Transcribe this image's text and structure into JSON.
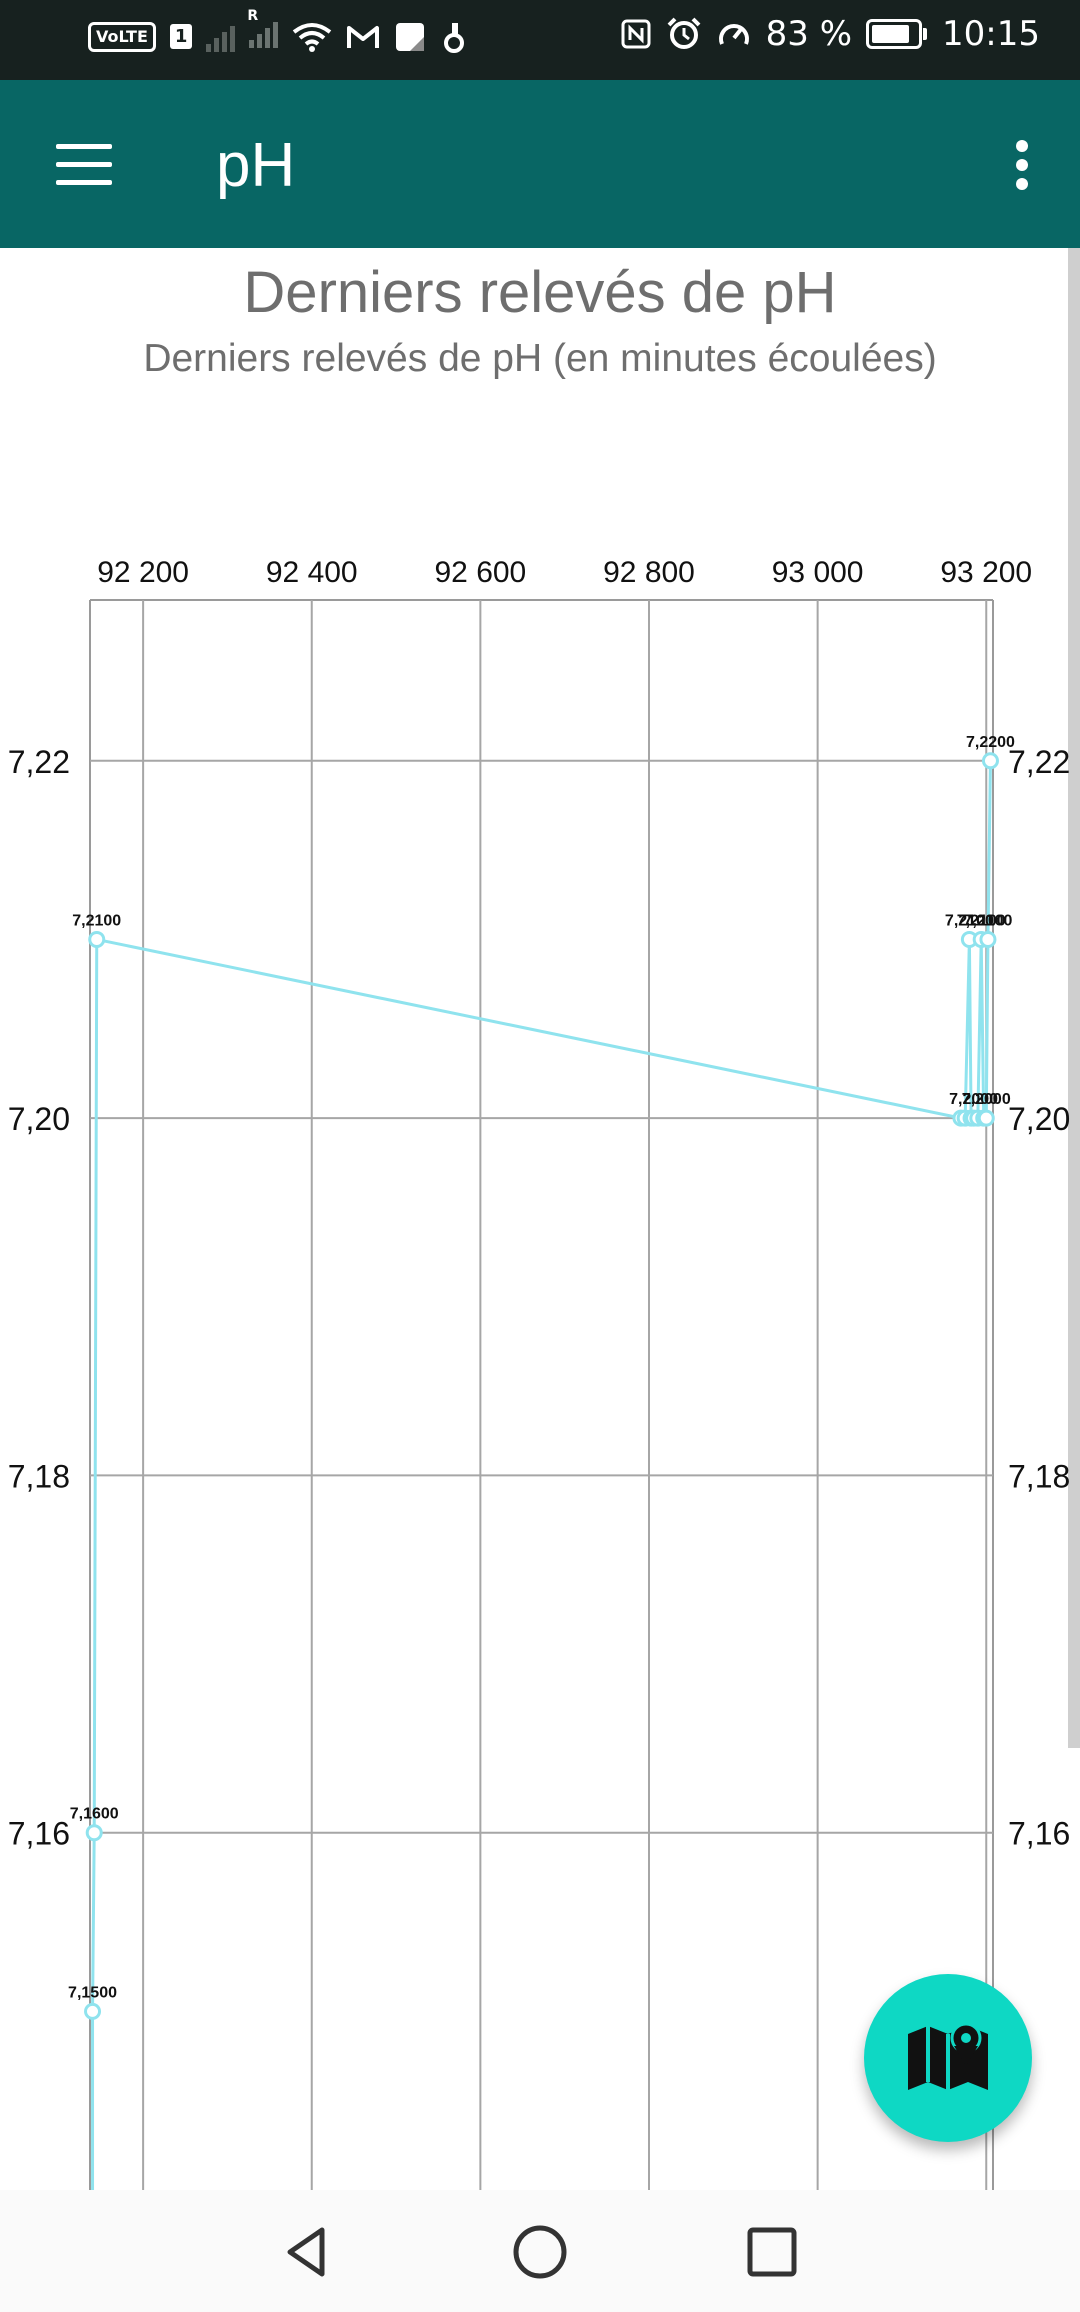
{
  "status_bar": {
    "volte": "VoLTE",
    "sim": "1",
    "roaming": "R",
    "battery_level": "83 %",
    "battery_fraction": 0.83,
    "time": "10:15",
    "icons": [
      "signal-icon",
      "wifi-icon",
      "gmail-icon",
      "notes-icon",
      "app-icon",
      "nfc-icon",
      "alarm-icon",
      "speedometer-icon",
      "battery-icon"
    ]
  },
  "app_bar": {
    "title": "pH",
    "menu_icon": "hamburger-menu-icon",
    "overflow_icon": "more-vert-icon",
    "background": "#086664"
  },
  "chart_data": {
    "type": "line",
    "title": "Derniers relevés de pH",
    "subtitle": "Derniers relevés de pH (en minutes écoulées)",
    "line_color": "#8fe3ee",
    "x_ticks": [
      "92 200",
      "92 400",
      "92 600",
      "92 800",
      "93 000",
      "93 200"
    ],
    "x_tick_values": [
      92200,
      92400,
      92600,
      92800,
      93000,
      93200
    ],
    "y_ticks": [
      "7,16",
      "7,18",
      "7,20",
      "7,22"
    ],
    "y_tick_values": [
      7.16,
      7.18,
      7.2,
      7.22
    ],
    "xlim": [
      92137,
      93208
    ],
    "ylim": [
      7.14,
      7.229
    ],
    "grid": true,
    "series": [
      {
        "points": [
          {
            "x": 92140,
            "y": 7.13,
            "label": ""
          },
          {
            "x": 92140,
            "y": 7.15,
            "label": "7,1500"
          },
          {
            "x": 92142,
            "y": 7.16,
            "label": "7,1600"
          },
          {
            "x": 92145,
            "y": 7.21,
            "label": "7,2100"
          },
          {
            "x": 93170,
            "y": 7.2,
            "label": ""
          },
          {
            "x": 93175,
            "y": 7.2,
            "label": ""
          },
          {
            "x": 93180,
            "y": 7.21,
            "label": "7,2100"
          },
          {
            "x": 93182,
            "y": 7.2,
            "label": ""
          },
          {
            "x": 93185,
            "y": 7.2,
            "label": "7,2000"
          },
          {
            "x": 93190,
            "y": 7.2,
            "label": ""
          },
          {
            "x": 93194,
            "y": 7.21,
            "label": "7,2100"
          },
          {
            "x": 93197,
            "y": 7.2,
            "label": ""
          },
          {
            "x": 93200,
            "y": 7.2,
            "label": "7,2000"
          },
          {
            "x": 93202,
            "y": 7.21,
            "label": "7,2100"
          },
          {
            "x": 93205,
            "y": 7.22,
            "label": "7,2200"
          }
        ]
      }
    ]
  },
  "fab": {
    "icon": "map-icon",
    "color": "#0ed8c4"
  },
  "nav_bar": {
    "icons": [
      "back-icon",
      "home-icon",
      "recents-icon"
    ]
  }
}
